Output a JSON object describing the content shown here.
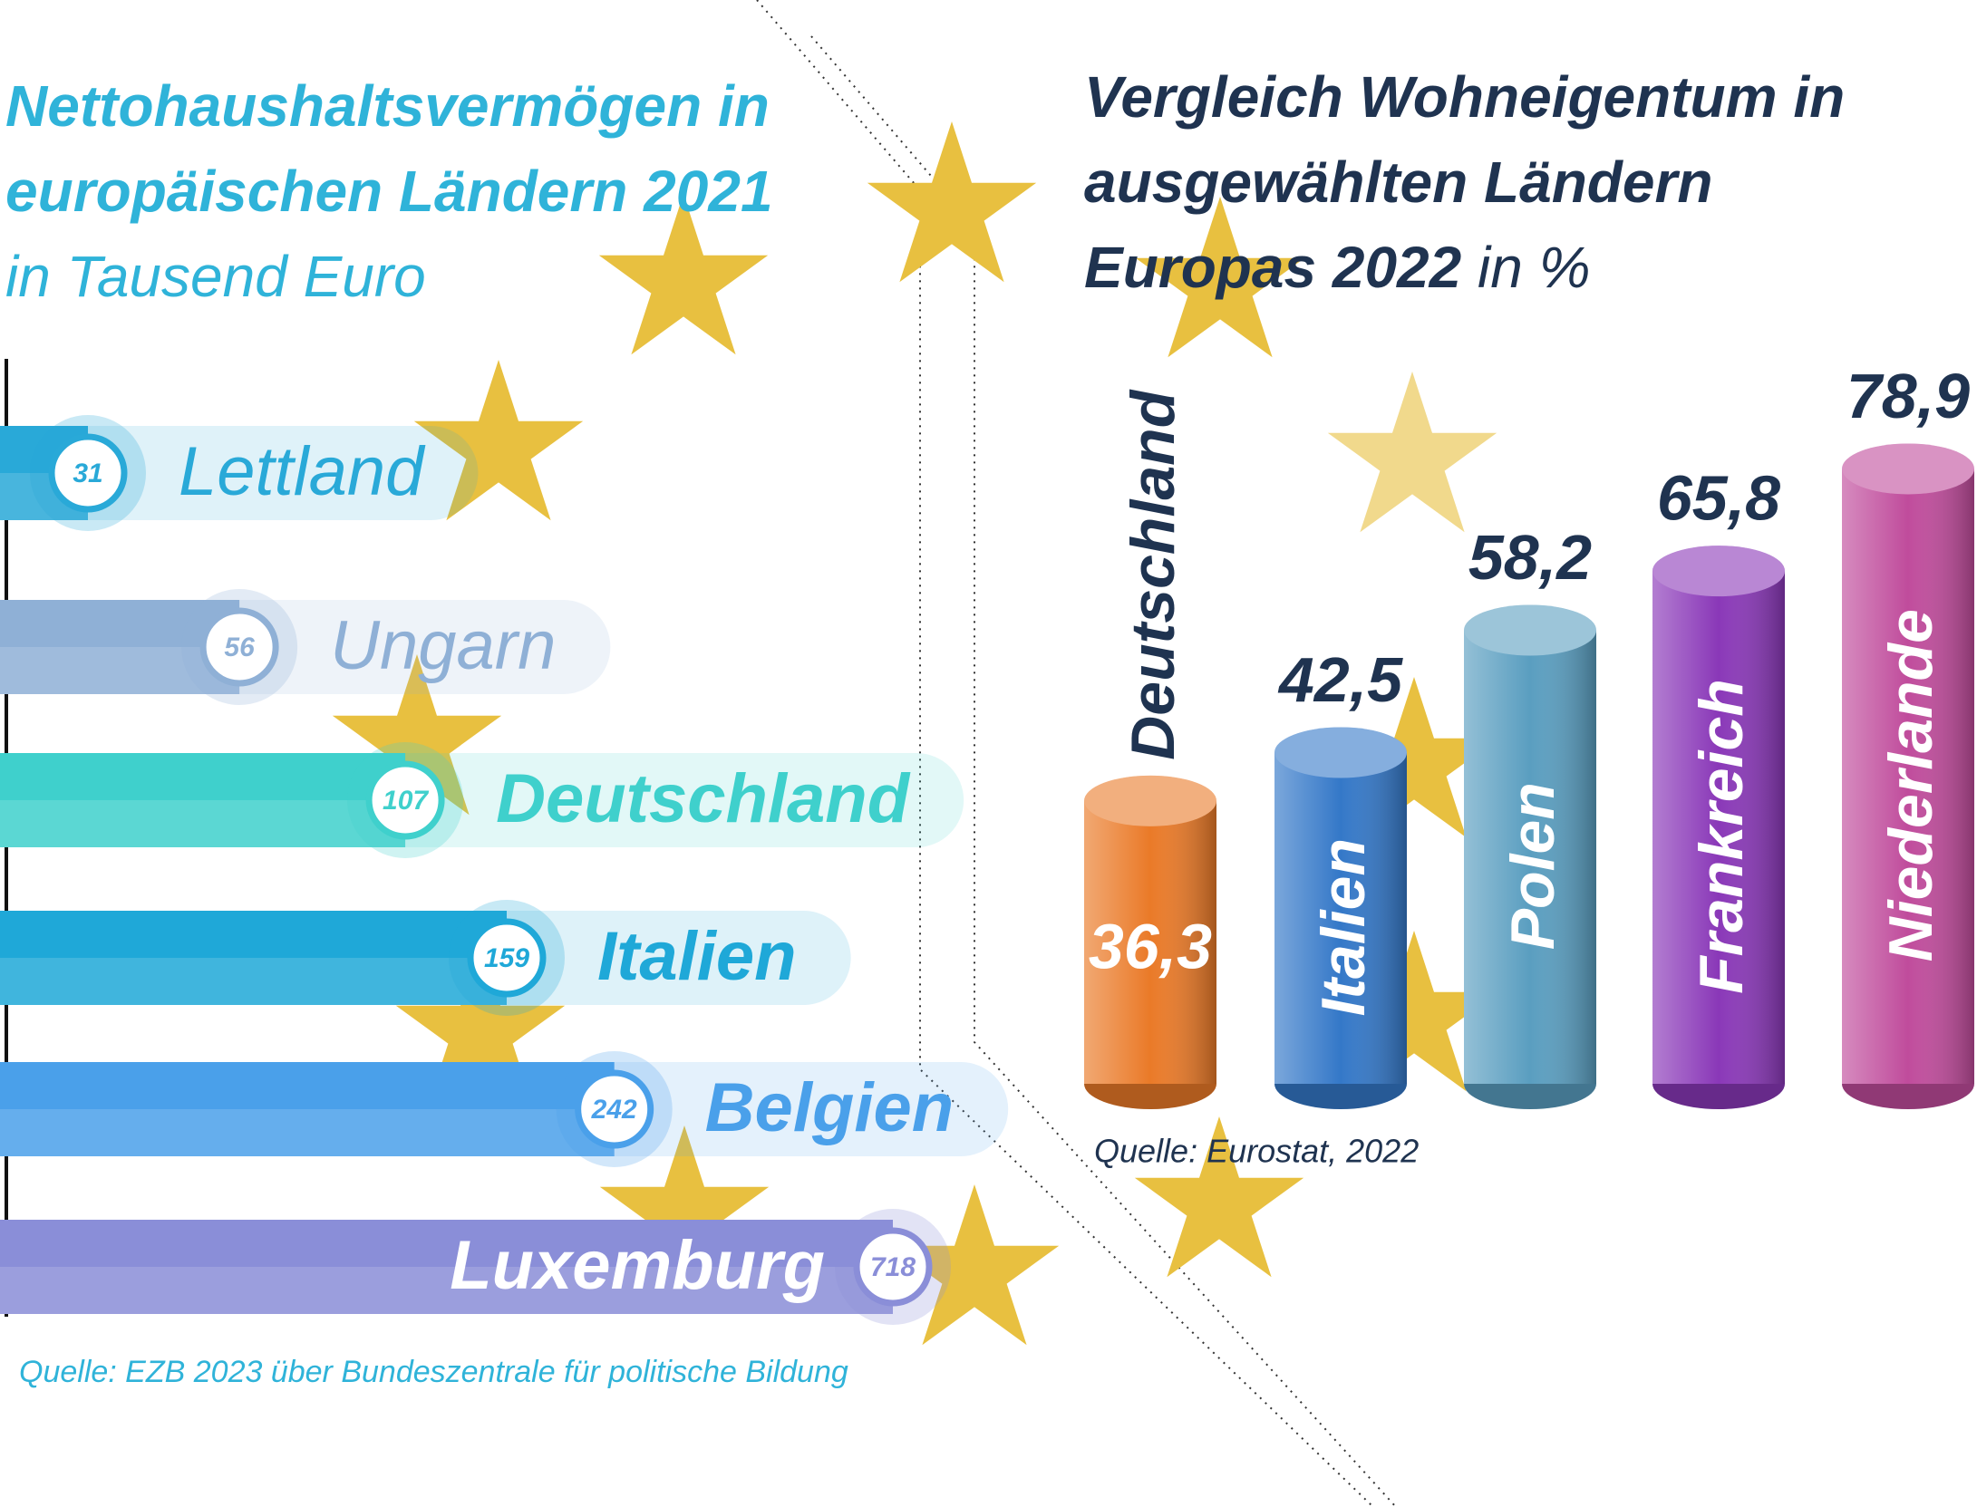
{
  "chart_data": [
    {
      "type": "bar",
      "orientation": "horizontal",
      "title": "Nettohaushaltsvermögen in europäischen Ländern 2021",
      "subtitle": "in Tausend Euro",
      "categories": [
        "Lettland",
        "Ungarn",
        "Deutschland",
        "Italien",
        "Belgien",
        "Luxemburg"
      ],
      "values": [
        31,
        56,
        107,
        159,
        242,
        718
      ],
      "colors": [
        "#29a9d8",
        "#8fb0d6",
        "#3fd0cc",
        "#1fa8d8",
        "#4aa0ea",
        "#8a8ed8"
      ],
      "source": "Quelle: EZB 2023 über Bundeszentrale für politische Bildung"
    },
    {
      "type": "cylinder",
      "title": "Vergleich Wohneigentum in ausgewählten Ländern Europas 2022",
      "subtitle": "in %",
      "categories": [
        "Deutschland",
        "Italien",
        "Polen",
        "Frankreich",
        "Niederlande"
      ],
      "values": [
        36.3,
        42.5,
        58.2,
        65.8,
        78.9
      ],
      "value_labels": [
        "36,3",
        "42,5",
        "58,2",
        "65,8",
        "78,9"
      ],
      "colors": [
        "#ea7a28",
        "#3478c8",
        "#5a9ec0",
        "#8a38b8",
        "#c04c9c"
      ],
      "source": "Quelle: Eurostat, 2022"
    }
  ]
}
